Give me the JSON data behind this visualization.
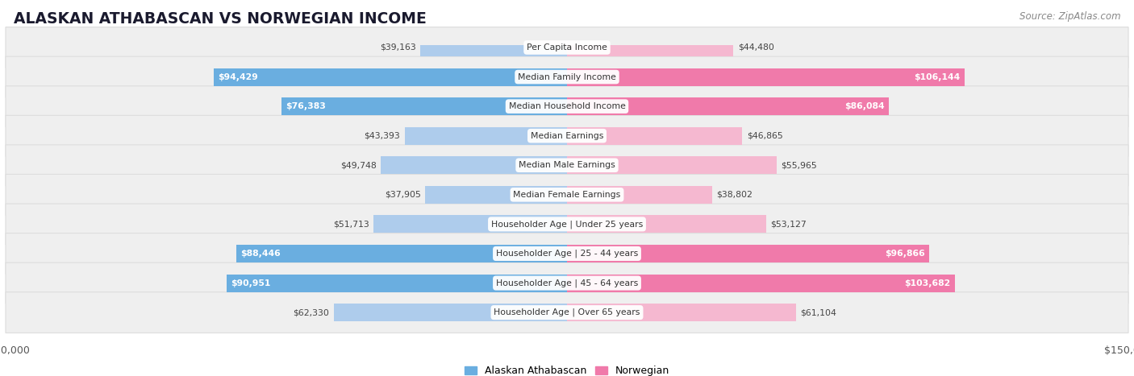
{
  "title": "ALASKAN ATHABASCAN VS NORWEGIAN INCOME",
  "source": "Source: ZipAtlas.com",
  "categories": [
    "Per Capita Income",
    "Median Family Income",
    "Median Household Income",
    "Median Earnings",
    "Median Male Earnings",
    "Median Female Earnings",
    "Householder Age | Under 25 years",
    "Householder Age | 25 - 44 years",
    "Householder Age | 45 - 64 years",
    "Householder Age | Over 65 years"
  ],
  "left_values": [
    39163,
    94429,
    76383,
    43393,
    49748,
    37905,
    51713,
    88446,
    90951,
    62330
  ],
  "right_values": [
    44480,
    106144,
    86084,
    46865,
    55965,
    38802,
    53127,
    96866,
    103682,
    61104
  ],
  "left_labels": [
    "$39,163",
    "$94,429",
    "$76,383",
    "$43,393",
    "$49,748",
    "$37,905",
    "$51,713",
    "$88,446",
    "$90,951",
    "$62,330"
  ],
  "right_labels": [
    "$44,480",
    "$106,144",
    "$86,084",
    "$46,865",
    "$55,965",
    "$38,802",
    "$53,127",
    "$96,866",
    "$103,682",
    "$61,104"
  ],
  "max_value": 150000,
  "left_color_strong": "#6aaee0",
  "left_color_light": "#aeccec",
  "right_color_strong": "#f07aaa",
  "right_color_light": "#f5b8d0",
  "label_color_left_strong": "#ffffff",
  "label_color_left_light": "#444444",
  "label_color_right_strong": "#ffffff",
  "label_color_right_light": "#444444",
  "strong_threshold": 75000,
  "background_color": "#ffffff",
  "row_bg_color": "#efefef",
  "row_border_color": "#dddddd",
  "legend_left": "Alaskan Athabascan",
  "legend_right": "Norwegian"
}
